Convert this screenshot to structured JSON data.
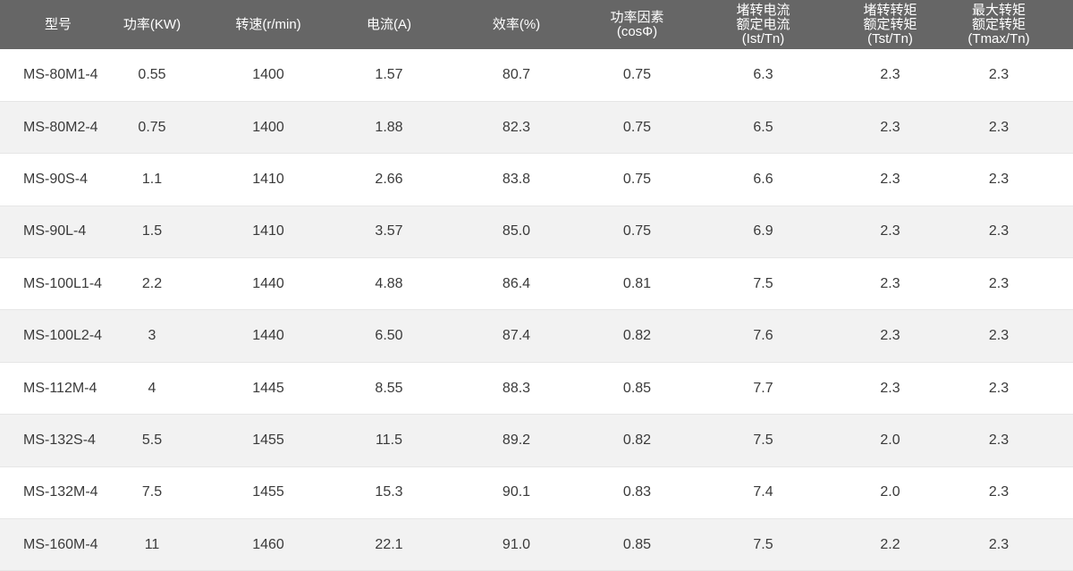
{
  "table": {
    "headers": [
      [
        "型号"
      ],
      [
        "功率(KW)"
      ],
      [
        "转速(r/min)"
      ],
      [
        "电流(A)"
      ],
      [
        "效率(%)"
      ],
      [
        "功率因素",
        "(cosΦ)"
      ],
      [
        "堵转电流",
        "额定电流",
        "(Ist/Tn)"
      ],
      [
        "堵转转矩",
        "额定转矩",
        "(Tst/Tn)"
      ],
      [
        "最大转矩",
        "额定转矩",
        "(Tmax/Tn)"
      ]
    ],
    "rows": [
      [
        "MS-80M1-4",
        "0.55",
        "1400",
        "1.57",
        "80.7",
        "0.75",
        "6.3",
        "2.3",
        "2.3"
      ],
      [
        "MS-80M2-4",
        "0.75",
        "1400",
        "1.88",
        "82.3",
        "0.75",
        "6.5",
        "2.3",
        "2.3"
      ],
      [
        "MS-90S-4",
        "1.1",
        "1410",
        "2.66",
        "83.8",
        "0.75",
        "6.6",
        "2.3",
        "2.3"
      ],
      [
        "MS-90L-4",
        "1.5",
        "1410",
        "3.57",
        "85.0",
        "0.75",
        "6.9",
        "2.3",
        "2.3"
      ],
      [
        "MS-100L1-4",
        "2.2",
        "1440",
        "4.88",
        "86.4",
        "0.81",
        "7.5",
        "2.3",
        "2.3"
      ],
      [
        "MS-100L2-4",
        "3",
        "1440",
        "6.50",
        "87.4",
        "0.82",
        "7.6",
        "2.3",
        "2.3"
      ],
      [
        "MS-112M-4",
        "4",
        "1445",
        "8.55",
        "88.3",
        "0.85",
        "7.7",
        "2.3",
        "2.3"
      ],
      [
        "MS-132S-4",
        "5.5",
        "1455",
        "11.5",
        "89.2",
        "0.82",
        "7.5",
        "2.0",
        "2.3"
      ],
      [
        "MS-132M-4",
        "7.5",
        "1455",
        "15.3",
        "90.1",
        "0.83",
        "7.4",
        "2.0",
        "2.3"
      ],
      [
        "MS-160M-4",
        "11",
        "1460",
        "22.1",
        "91.0",
        "0.85",
        "7.5",
        "2.2",
        "2.3"
      ]
    ]
  },
  "colors": {
    "header_bg": "#666666",
    "header_text": "#ffffff",
    "row_alt_bg": "#f2f2f2",
    "row_bg": "#ffffff",
    "text": "#3a3a3a"
  }
}
